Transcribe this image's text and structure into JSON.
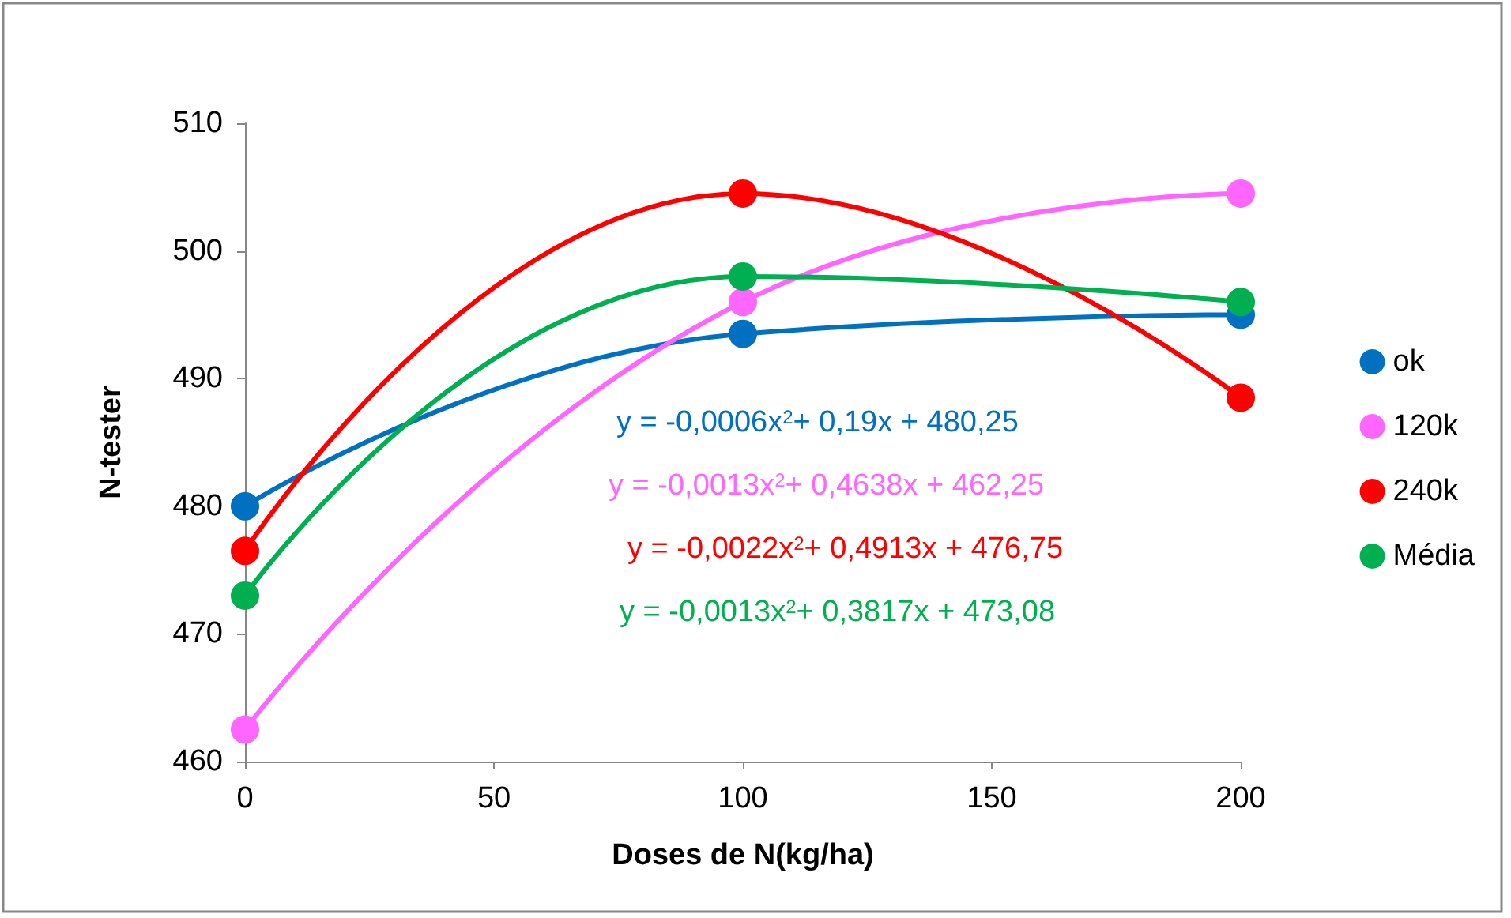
{
  "chart_data": {
    "type": "line",
    "xlabel": "Doses de N(kg/ha)",
    "ylabel": "N-tester",
    "x": [
      0,
      100,
      200
    ],
    "series": [
      {
        "name": "ok",
        "color": "#0070c0",
        "values": [
          480,
          493.5,
          495
        ]
      },
      {
        "name": "120k",
        "color": "#ff66ff",
        "values": [
          462.5,
          496,
          504.5
        ]
      },
      {
        "name": "240k",
        "color": "#ff0000",
        "values": [
          476.5,
          504.5,
          488.5
        ]
      },
      {
        "name": "Média",
        "color": "#00b050",
        "values": [
          473,
          498,
          496
        ]
      }
    ],
    "xlim": [
      0,
      200
    ],
    "xticks": [
      0,
      50,
      100,
      150,
      200
    ],
    "ylim": [
      460,
      510
    ],
    "yticks": [
      460,
      470,
      480,
      490,
      500,
      510
    ],
    "grid": false,
    "legend": "right",
    "marker": "circle",
    "line_style": "solid",
    "annotations": [
      "y = -0,0006x$^{2}$+ 0,19x + 480,25",
      "y = -0,0013x$^{2}$+ 0,4638x + 462,25",
      "y = -0,0022x$^{2}$+ 0,4913x + 476,75",
      "y = -0,0013x$^{2}$+ 0,3817x + 473,08"
    ]
  }
}
